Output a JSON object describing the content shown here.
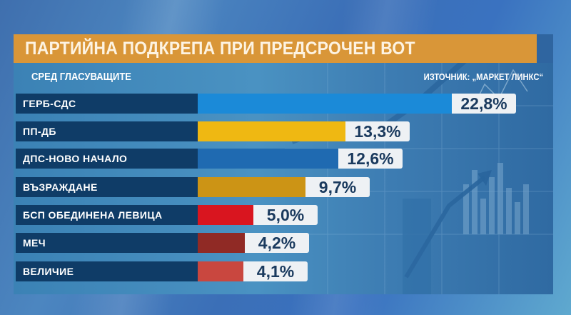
{
  "header": {
    "title": "ПАРТИЙНА ПОДКРЕПА ПРИ ПРЕДСРОЧЕН ВОТ",
    "subtitle": "СРЕД ГЛАСУВАЩИТЕ",
    "source": "ИЗТОЧНИК: „МАРКЕТ ЛИНКС“"
  },
  "colors": {
    "title_bg": "#d99638",
    "label_bg": "#0f3c67",
    "value_bg": "#eef1f4"
  },
  "rows": [
    {
      "label": "ГЕРБ-СДС",
      "value_label": "22,8%",
      "color": "#1b8ad8"
    },
    {
      "label": "ПП-ДБ",
      "value_label": "13,3%",
      "color": "#efb812"
    },
    {
      "label": "ДПС-НОВО НАЧАЛО",
      "value_label": "12,6%",
      "color": "#1f6ab1"
    },
    {
      "label": "ВЪЗРАЖДАНЕ",
      "value_label": "9,7%",
      "color": "#cc9415"
    },
    {
      "label": "БСП ОБЕДИНЕНА ЛЕВИЦА",
      "value_label": "5,0%",
      "color": "#d9151f"
    },
    {
      "label": "МЕЧ",
      "value_label": "4,2%",
      "color": "#902a25"
    },
    {
      "label": "ВЕЛИЧИЕ",
      "value_label": "4,1%",
      "color": "#c9473f"
    }
  ],
  "chart_data": {
    "type": "bar",
    "orientation": "horizontal",
    "title": "ПАРТИЙНА ПОДКРЕПА ПРИ ПРЕДСРОЧЕН ВОТ",
    "subtitle": "СРЕД ГЛАСУВАЩИТЕ",
    "source": "ИЗТОЧНИК: „МАРКЕТ ЛИНКС“",
    "categories": [
      "ГЕРБ-СДС",
      "ПП-ДБ",
      "ДПС-НОВО НАЧАЛО",
      "ВЪЗРАЖДАНЕ",
      "БСП ОБЕДИНЕНА ЛЕВИЦА",
      "МЕЧ",
      "ВЕЛИЧИЕ"
    ],
    "values": [
      22.8,
      13.3,
      12.6,
      9.7,
      5.0,
      4.2,
      4.1
    ],
    "unit": "%",
    "xlabel": "",
    "ylabel": "",
    "grid": false,
    "legend": false
  }
}
